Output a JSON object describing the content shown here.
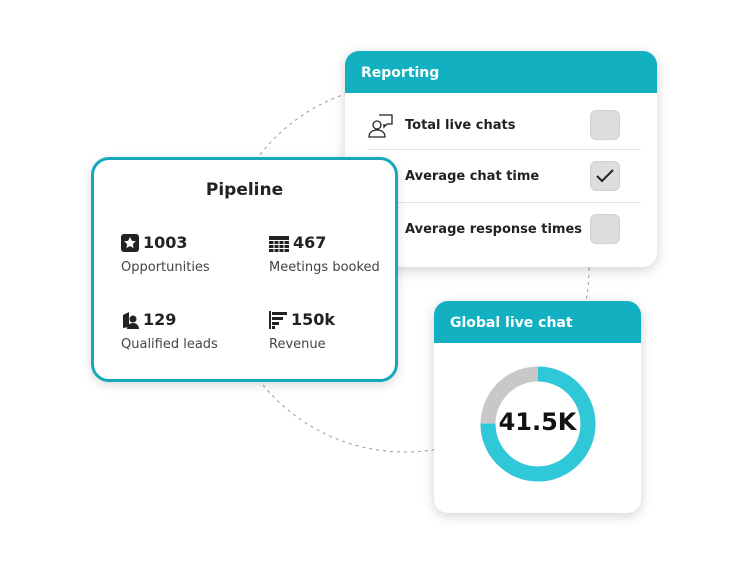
{
  "reporting": {
    "title": "Reporting",
    "items": [
      {
        "label": "Total live chats",
        "checked": false,
        "icon": "person-chat-icon"
      },
      {
        "label": "Average chat time",
        "checked": true
      },
      {
        "label": "Average response times",
        "checked": false
      }
    ]
  },
  "pipeline": {
    "title": "Pipeline",
    "stats": [
      {
        "value": "1003",
        "label": "Opportunities",
        "icon": "star-icon"
      },
      {
        "value": "467",
        "label": "Meetings booked",
        "icon": "calendar-icon"
      },
      {
        "value": "129",
        "label": "Qualified leads",
        "icon": "leads-icon"
      },
      {
        "value": "150k",
        "label": "Revenue",
        "icon": "revenue-bars-icon"
      }
    ]
  },
  "global": {
    "title": "Global live chat",
    "value": "41.5K",
    "fill_percent": 75,
    "colors": {
      "fill": "#2ec8d8",
      "rest": "#c8c8c8"
    }
  },
  "colors": {
    "accent": "#12b0c0"
  }
}
